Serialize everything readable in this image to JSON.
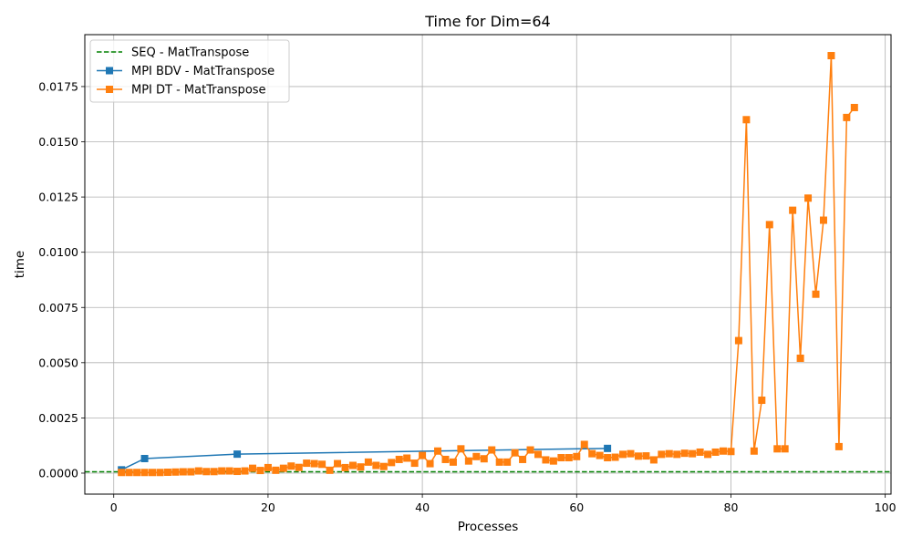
{
  "chart_data": {
    "type": "line",
    "title": "Time for Dim=64",
    "xlabel": "Processes",
    "ylabel": "time",
    "xlim": [
      -3.75,
      100.75
    ],
    "ylim": [
      -0.00095,
      0.01985
    ],
    "xticks": [
      0,
      20,
      40,
      60,
      80,
      100
    ],
    "yticks": [
      0.0,
      0.0025,
      0.005,
      0.0075,
      0.01,
      0.0125,
      0.015,
      0.0175
    ],
    "ytick_labels": [
      "0.0000",
      "0.0025",
      "0.0050",
      "0.0075",
      "0.0100",
      "0.0125",
      "0.0150",
      "0.0175"
    ],
    "grid": true,
    "legend_position": "upper-left",
    "series": [
      {
        "name": "SEQ - MatTranspose",
        "style": "dashed",
        "marker": "none",
        "color": "#008000",
        "x": [
          -3.75,
          100.75
        ],
        "y": [
          6e-05,
          6e-05
        ]
      },
      {
        "name": "MPI BDV - MatTranspose",
        "style": "solid",
        "marker": "square",
        "color": "#1f77b4",
        "x": [
          1,
          4,
          16,
          64
        ],
        "y": [
          0.00015,
          0.00066,
          0.00086,
          0.00112
        ]
      },
      {
        "name": "MPI DT - MatTranspose",
        "style": "solid",
        "marker": "square",
        "color": "#ff7f0e",
        "x": [
          1,
          2,
          3,
          4,
          5,
          6,
          7,
          8,
          9,
          10,
          11,
          12,
          13,
          14,
          15,
          16,
          17,
          18,
          19,
          20,
          21,
          22,
          23,
          24,
          25,
          26,
          27,
          28,
          29,
          30,
          31,
          32,
          33,
          34,
          35,
          36,
          37,
          38,
          39,
          40,
          41,
          42,
          43,
          44,
          45,
          46,
          47,
          48,
          49,
          50,
          51,
          52,
          53,
          54,
          55,
          56,
          57,
          58,
          59,
          60,
          61,
          62,
          63,
          64,
          65,
          66,
          67,
          68,
          69,
          70,
          71,
          72,
          73,
          74,
          75,
          76,
          77,
          78,
          79,
          80,
          81,
          82,
          83,
          84,
          85,
          86,
          87,
          88,
          89,
          90,
          91,
          92,
          93,
          94,
          95,
          96
        ],
        "y": [
          3e-05,
          3e-05,
          3e-05,
          3e-05,
          3e-05,
          3e-05,
          4e-05,
          5e-05,
          6e-05,
          6e-05,
          0.0001,
          7e-05,
          7e-05,
          0.0001,
          0.0001,
          8e-05,
          0.0001,
          0.00022,
          0.00012,
          0.00025,
          0.00013,
          0.00022,
          0.00032,
          0.00026,
          0.00045,
          0.00043,
          0.0004,
          0.00013,
          0.00043,
          0.00025,
          0.00035,
          0.00028,
          0.0005,
          0.00035,
          0.0003,
          0.00048,
          0.00062,
          0.00068,
          0.00045,
          0.0008,
          0.00043,
          0.001,
          0.00062,
          0.0005,
          0.0011,
          0.00055,
          0.00075,
          0.00065,
          0.00105,
          0.0005,
          0.0005,
          0.00092,
          0.00062,
          0.00105,
          0.00085,
          0.0006,
          0.00055,
          0.0007,
          0.0007,
          0.00075,
          0.0013,
          0.00088,
          0.0008,
          0.0007,
          0.00072,
          0.00085,
          0.00088,
          0.00077,
          0.00078,
          0.0006,
          0.00085,
          0.00088,
          0.00085,
          0.0009,
          0.00088,
          0.00095,
          0.00085,
          0.00095,
          0.001,
          0.00098,
          0.006,
          0.016,
          0.001,
          0.0033,
          0.01125,
          0.0011,
          0.0011,
          0.0119,
          0.0052,
          0.01245,
          0.0081,
          0.01145,
          0.0189,
          0.0012,
          0.0161,
          0.01655
        ]
      }
    ]
  }
}
